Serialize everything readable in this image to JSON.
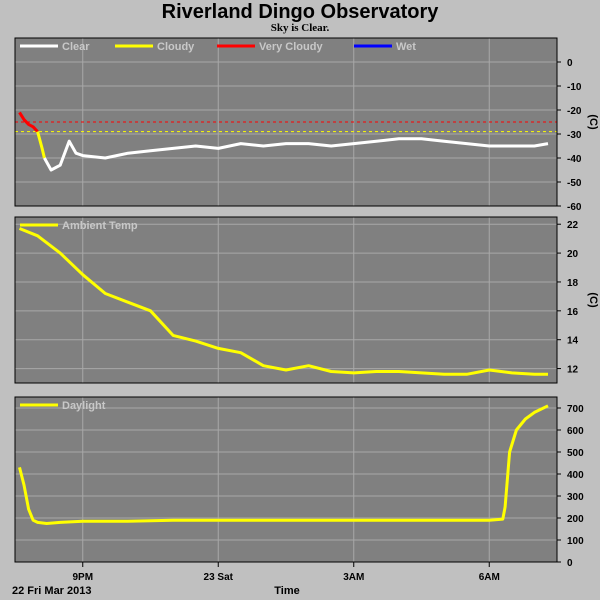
{
  "title": "Riverland Dingo Observatory",
  "subtitle": "Sky is Clear.",
  "date_label": "22 Fri Mar 2013",
  "xlabel": "Time",
  "x_ticks": [
    {
      "label": "9PM",
      "hour": 21
    },
    {
      "label": "23 Sat",
      "hour": 24
    },
    {
      "label": "3AM",
      "hour": 27
    },
    {
      "label": "6AM",
      "hour": 30
    }
  ],
  "x_range_hours": [
    19.5,
    31.5
  ],
  "colors": {
    "panel_bg": "#808080",
    "grid": "#a8a8a8",
    "clear": "#ffffff",
    "cloudy": "#ffff00",
    "very_cloudy": "#ff0000",
    "wet": "#0000ff"
  },
  "chart_data": [
    {
      "type": "line",
      "panel": "sky",
      "ylabel": "(C)",
      "ylim": [
        -60,
        10
      ],
      "y_ticks": [
        0,
        -10,
        -20,
        -30,
        -40,
        -50,
        -60
      ],
      "legend": [
        {
          "label": "Clear",
          "color": "#ffffff"
        },
        {
          "label": "Cloudy",
          "color": "#ffff00"
        },
        {
          "label": "Very Cloudy",
          "color": "#ff0000"
        },
        {
          "label": "Wet",
          "color": "#0000ff"
        }
      ],
      "thresholds": [
        {
          "value": -25,
          "color": "#ff0000"
        },
        {
          "value": -29,
          "color": "#ffff00"
        }
      ],
      "series": [
        {
          "name": "Very Cloudy",
          "color": "#ff0000",
          "x": [
            19.6,
            19.7,
            19.8,
            19.9,
            20.0
          ],
          "y": [
            -21,
            -24,
            -26,
            -27,
            -29
          ]
        },
        {
          "name": "Cloudy",
          "color": "#ffff00",
          "x": [
            20.0,
            20.1,
            20.15
          ],
          "y": [
            -29,
            -36,
            -40
          ]
        },
        {
          "name": "Clear",
          "color": "#ffffff",
          "x": [
            20.15,
            20.3,
            20.5,
            20.7,
            20.85,
            21.0,
            21.5,
            22.0,
            22.5,
            23.0,
            23.5,
            24.0,
            24.5,
            25.0,
            25.5,
            26.0,
            26.5,
            27.0,
            27.5,
            28.0,
            28.5,
            29.0,
            29.5,
            30.0,
            30.5,
            31.0,
            31.3
          ],
          "y": [
            -40,
            -45,
            -43,
            -33,
            -38,
            -39,
            -40,
            -38,
            -37,
            -36,
            -35,
            -36,
            -34,
            -35,
            -34,
            -34,
            -35,
            -34,
            -33,
            -32,
            -32,
            -33,
            -34,
            -35,
            -35,
            -35,
            -34
          ]
        }
      ]
    },
    {
      "type": "line",
      "panel": "ambient",
      "ylabel": "(C)",
      "ylim": [
        11,
        22.5
      ],
      "y_ticks": [
        22,
        20,
        18,
        16,
        14,
        12
      ],
      "legend": [
        {
          "label": "Ambient Temp",
          "color": "#ffff00"
        }
      ],
      "series": [
        {
          "name": "Ambient Temp",
          "color": "#ffff00",
          "x": [
            19.6,
            20.0,
            20.5,
            21.0,
            21.5,
            22.0,
            22.5,
            23.0,
            23.5,
            24.0,
            24.5,
            25.0,
            25.5,
            26.0,
            26.5,
            27.0,
            27.5,
            28.0,
            28.5,
            29.0,
            29.5,
            30.0,
            30.5,
            31.0,
            31.3
          ],
          "y": [
            21.7,
            21.2,
            20.0,
            18.5,
            17.2,
            16.6,
            16.0,
            14.3,
            13.9,
            13.4,
            13.1,
            12.2,
            11.9,
            12.2,
            11.8,
            11.7,
            11.8,
            11.8,
            11.7,
            11.6,
            11.6,
            11.9,
            11.7,
            11.6,
            11.6
          ]
        }
      ]
    },
    {
      "type": "line",
      "panel": "daylight",
      "ylabel": "",
      "ylim": [
        0,
        750
      ],
      "y_ticks": [
        700,
        600,
        500,
        400,
        300,
        200,
        100,
        0
      ],
      "legend": [
        {
          "label": "Daylight",
          "color": "#ffff00"
        }
      ],
      "series": [
        {
          "name": "Daylight",
          "color": "#ffff00",
          "x": [
            19.6,
            19.7,
            19.8,
            19.9,
            20.0,
            20.2,
            20.5,
            21.0,
            22.0,
            23.0,
            24.0,
            25.0,
            26.0,
            27.0,
            28.0,
            29.0,
            30.0,
            30.3,
            30.35,
            30.45,
            30.6,
            30.8,
            31.0,
            31.3
          ],
          "y": [
            430,
            350,
            240,
            190,
            180,
            175,
            180,
            185,
            185,
            190,
            190,
            190,
            190,
            190,
            190,
            190,
            190,
            195,
            250,
            500,
            600,
            650,
            680,
            710
          ]
        }
      ]
    }
  ]
}
